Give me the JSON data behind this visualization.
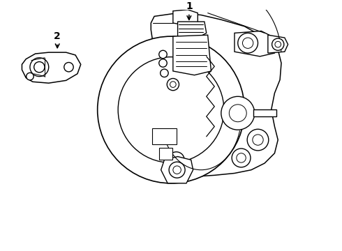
{
  "background_color": "#ffffff",
  "line_color": "#000000",
  "line_width": 1.0,
  "label1": "1",
  "label2": "2",
  "fig_width": 4.9,
  "fig_height": 3.6,
  "dpi": 100
}
